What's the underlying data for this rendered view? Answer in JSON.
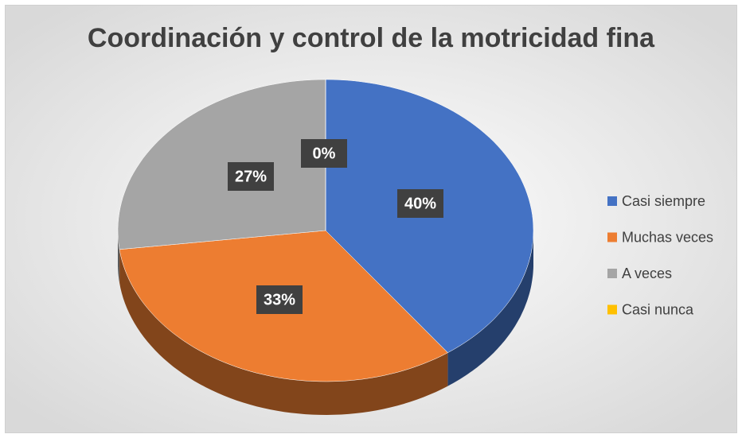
{
  "chart_data": {
    "type": "pie3d",
    "title": "Coordinación y control de la motricidad fina",
    "categories": [
      "Casi siempre",
      "Muchas veces",
      "A veces",
      "Casi nunca"
    ],
    "values": [
      40,
      33,
      27,
      0
    ],
    "value_labels": [
      "40%",
      "33%",
      "27%",
      "0%"
    ],
    "colors": [
      "#4472c4",
      "#ed7d31",
      "#a5a5a5",
      "#ffc000"
    ],
    "legend": "right"
  }
}
